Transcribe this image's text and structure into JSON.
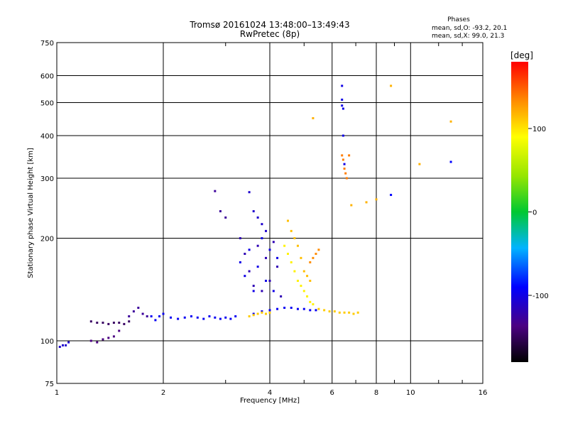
{
  "chart_data": {
    "type": "scatter",
    "title": "Tromsø 20161024 13:48:00–13:49:43",
    "subtitle": "RwPretec (8p)",
    "xlabel": "Frequency [MHz]",
    "ylabel": "Stationary phase Virtual Height [km]",
    "x_scale": "log",
    "y_scale": "log",
    "xlim": [
      1,
      16
    ],
    "ylim": [
      75,
      750
    ],
    "x_ticks": [
      "1",
      "2",
      "4",
      "6",
      "8",
      "10",
      "16"
    ],
    "y_ticks": [
      "75",
      "100",
      "200",
      "300",
      "400",
      "500",
      "600",
      "750"
    ],
    "grid": true,
    "phase_stats": {
      "heading": "Phases",
      "line_o": "mean, sd,O: -93.2, 20.1",
      "line_x": "mean, sd,X:  99.0, 21.3"
    },
    "colorbar": {
      "label": "[deg]",
      "ticks": [
        "100",
        "0",
        "-100"
      ],
      "range": [
        -180,
        180
      ]
    },
    "points_phase_deg_estimated": true,
    "series": [
      {
        "x": [
          1.02,
          1.04,
          1.06,
          1.08
        ],
        "y": [
          96,
          97,
          97,
          99
        ],
        "phase": -110
      },
      {
        "x": [
          1.25,
          1.3,
          1.35,
          1.4,
          1.45,
          1.5,
          1.55,
          1.6
        ],
        "y": [
          114,
          113,
          113,
          112,
          113,
          113,
          112,
          114
        ],
        "phase": -150
      },
      {
        "x": [
          1.25,
          1.3,
          1.35,
          1.4,
          1.45,
          1.5
        ],
        "y": [
          100,
          99,
          101,
          102,
          103,
          107
        ],
        "phase": -140
      },
      {
        "x": [
          1.6,
          1.65,
          1.7,
          1.75,
          1.8
        ],
        "y": [
          118,
          122,
          125,
          120,
          118
        ],
        "phase": -130
      },
      {
        "x": [
          1.85,
          1.9,
          1.95,
          2.0,
          2.1,
          2.2,
          2.3,
          2.4,
          2.5,
          2.6,
          2.7,
          2.8,
          2.9,
          3.0,
          3.1,
          3.2
        ],
        "y": [
          118,
          115,
          118,
          120,
          117,
          116,
          117,
          118,
          117,
          116,
          118,
          117,
          116,
          117,
          116,
          118
        ],
        "phase": -95
      },
      {
        "x": [
          2.8,
          2.9,
          3.0
        ],
        "y": [
          275,
          240,
          230
        ],
        "phase": -130
      },
      {
        "x": [
          3.3,
          3.4,
          3.5,
          3.6,
          3.7,
          3.8,
          3.9,
          4.0,
          4.1,
          4.2,
          4.3
        ],
        "y": [
          200,
          180,
          160,
          145,
          190,
          140,
          175,
          150,
          195,
          165,
          135
        ],
        "phase": -120
      },
      {
        "x": [
          3.3,
          3.4,
          3.5,
          3.6,
          3.7,
          3.8,
          3.9,
          4.0,
          4.1,
          4.2
        ],
        "y": [
          170,
          155,
          185,
          140,
          165,
          200,
          150,
          185,
          140,
          175
        ],
        "phase": -100
      },
      {
        "x": [
          3.5,
          3.6,
          3.7,
          3.8,
          3.9
        ],
        "y": [
          273,
          240,
          230,
          220,
          210
        ],
        "phase": -110
      },
      {
        "x": [
          3.6,
          3.8,
          4.0,
          4.2,
          4.4,
          4.6,
          4.8,
          5.0,
          5.2,
          5.4
        ],
        "y": [
          120,
          122,
          123,
          124,
          125,
          125,
          124,
          124,
          123,
          123
        ],
        "phase": -95
      },
      {
        "x": [
          3.5,
          3.6,
          3.7,
          3.8,
          3.9,
          4.0
        ],
        "y": [
          118,
          119,
          120,
          121,
          120,
          121
        ],
        "phase": 110
      },
      {
        "x": [
          4.4,
          4.5,
          4.6,
          4.7,
          4.8,
          4.9,
          5.0,
          5.1,
          5.2,
          5.3
        ],
        "y": [
          190,
          180,
          170,
          160,
          150,
          145,
          140,
          135,
          130,
          128
        ],
        "phase": 95
      },
      {
        "x": [
          4.5,
          4.6,
          4.7,
          4.8,
          4.9,
          5.0,
          5.1,
          5.2
        ],
        "y": [
          225,
          210,
          200,
          190,
          175,
          160,
          155,
          150
        ],
        "phase": 115
      },
      {
        "x": [
          5.2,
          5.3,
          5.4,
          5.5
        ],
        "y": [
          170,
          175,
          180,
          185
        ],
        "phase": 135
      },
      {
        "x": [
          5.5,
          5.7,
          5.9,
          6.1,
          6.3,
          6.5,
          6.7,
          6.9,
          7.1
        ],
        "y": [
          124,
          123,
          122,
          122,
          121,
          121,
          121,
          120,
          121
        ],
        "phase": 110
      },
      {
        "x": [
          6.4,
          6.4,
          6.4,
          6.45,
          6.45,
          6.5
        ],
        "y": [
          560,
          510,
          490,
          480,
          400,
          330
        ],
        "phase": -100
      },
      {
        "x": [
          6.4,
          6.45,
          6.5,
          6.55,
          6.6,
          6.7
        ],
        "y": [
          350,
          340,
          320,
          310,
          300,
          350
        ],
        "phase": 140
      },
      {
        "x": [
          5.3,
          6.8,
          7.5,
          8.0,
          8.8,
          10.6,
          13.0
        ],
        "y": [
          450,
          250,
          255,
          260,
          560,
          330,
          440
        ],
        "phase": 120
      },
      {
        "x": [
          8.8,
          13.0
        ],
        "y": [
          268,
          335
        ],
        "phase": -90
      }
    ]
  }
}
